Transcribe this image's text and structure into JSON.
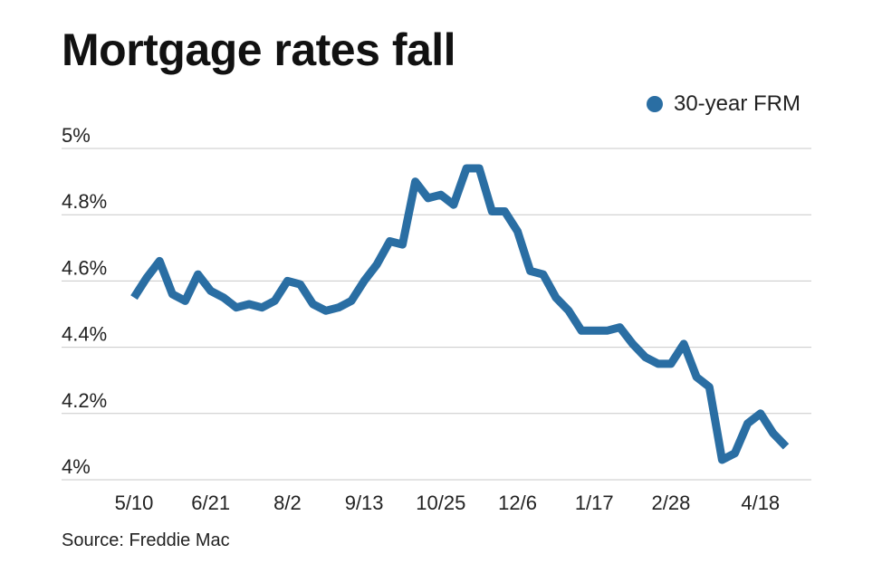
{
  "title": "Mortgage rates fall",
  "legend": {
    "label": "30-year FRM"
  },
  "source": "Source: Freddie Mac",
  "colors": {
    "series": "#2a6ea3",
    "grid": "#c8c8c8",
    "text": "#222222"
  },
  "chart_data": {
    "type": "line",
    "title": "Mortgage rates fall",
    "xlabel": "",
    "ylabel": "",
    "ylim": [
      4.0,
      5.0
    ],
    "yticks": [
      5.0,
      4.8,
      4.6,
      4.4,
      4.2,
      4.0
    ],
    "ytick_labels": [
      "5%",
      "4.8%",
      "4.6%",
      "4.4%",
      "4.2%",
      "4%"
    ],
    "xtick_labels": [
      "5/10",
      "6/21",
      "8/2",
      "9/13",
      "10/25",
      "12/6",
      "1/17",
      "2/28",
      "4/18"
    ],
    "xtick_positions": [
      0,
      6,
      12,
      18,
      24,
      30,
      36,
      42,
      49
    ],
    "grid": "horizontal",
    "legend_position": "top-right",
    "series": [
      {
        "name": "30-year FRM",
        "values": [
          4.55,
          4.61,
          4.66,
          4.56,
          4.54,
          4.62,
          4.57,
          4.55,
          4.52,
          4.53,
          4.52,
          4.54,
          4.6,
          4.59,
          4.53,
          4.51,
          4.52,
          4.54,
          4.6,
          4.65,
          4.72,
          4.71,
          4.9,
          4.85,
          4.86,
          4.83,
          4.94,
          4.94,
          4.81,
          4.81,
          4.75,
          4.63,
          4.62,
          4.55,
          4.51,
          4.45,
          4.45,
          4.45,
          4.46,
          4.41,
          4.37,
          4.35,
          4.35,
          4.41,
          4.31,
          4.28,
          4.06,
          4.08,
          4.17,
          4.2,
          4.14,
          4.1
        ]
      }
    ]
  }
}
